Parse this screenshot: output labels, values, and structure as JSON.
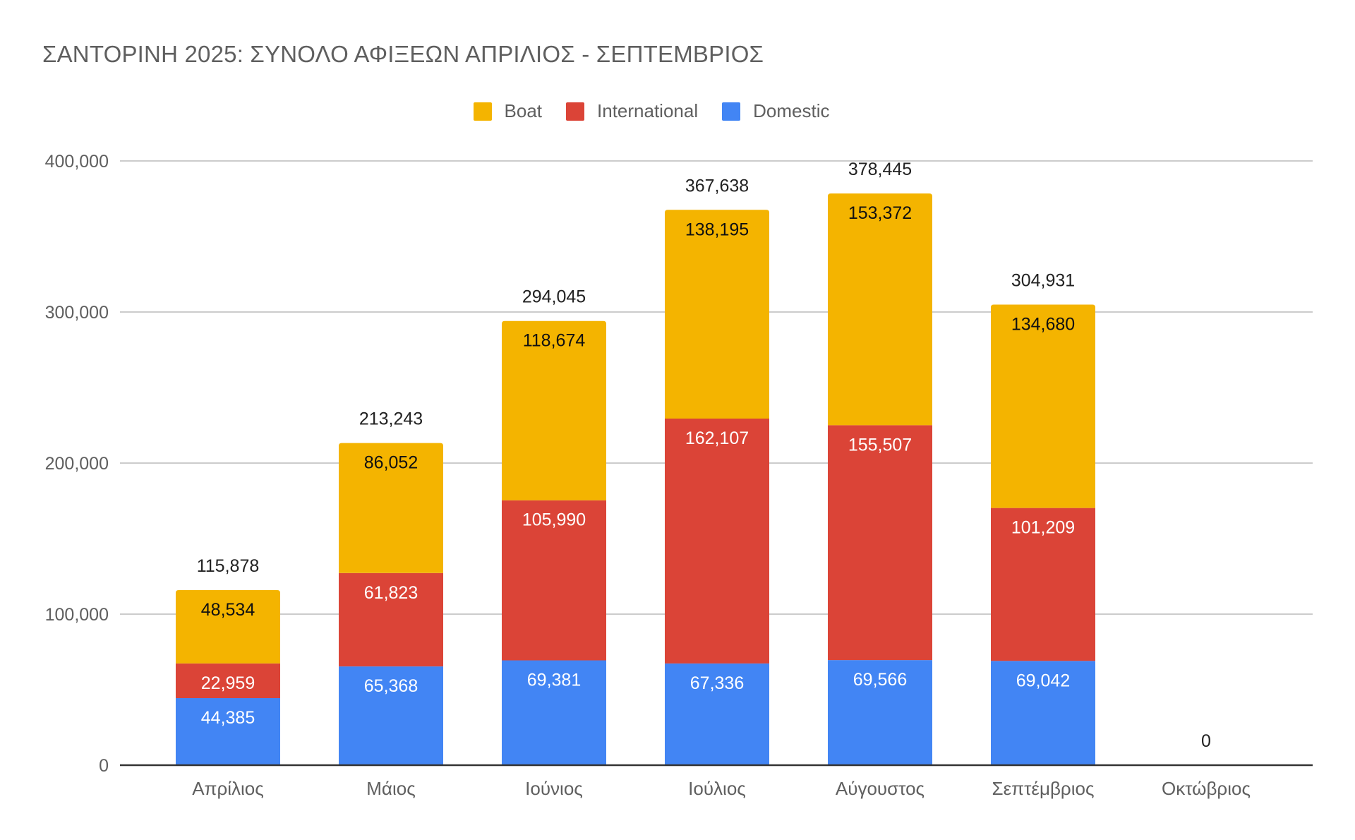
{
  "chart_data": {
    "type": "bar",
    "stacked": true,
    "title": "ΣΑΝΤΟΡΙΝΗ 2025: ΣΥΝΟΛΟ ΑΦΙΞΕΩΝ ΑΠΡΙΛΙΟΣ - ΣΕΠΤΕΜΒΡΙΟΣ",
    "xlabel": "",
    "ylabel": "",
    "ylim": [
      0,
      400000
    ],
    "yticks": [
      0,
      100000,
      200000,
      300000,
      400000
    ],
    "ytick_labels": [
      "0",
      "100,000",
      "200,000",
      "300,000",
      "400,000"
    ],
    "grid": true,
    "legend_position": "top-center",
    "categories": [
      "Απρίλιος",
      "Μάιος",
      "Ιούνιος",
      "Ιούλιος",
      "Αύγουστος",
      "Σεπτέμβριος",
      "Οκτώβριος"
    ],
    "series": [
      {
        "name": "Domestic",
        "color": "#4285F4",
        "label_color": "#ffffff",
        "values": [
          44385,
          65368,
          69381,
          67336,
          69566,
          69042,
          0
        ],
        "labels": [
          "44,385",
          "65,368",
          "69,381",
          "67,336",
          "69,566",
          "69,042",
          ""
        ]
      },
      {
        "name": "International",
        "color": "#DB4437",
        "label_color": "#ffffff",
        "values": [
          22959,
          61823,
          105990,
          162107,
          155507,
          101209,
          0
        ],
        "labels": [
          "22,959",
          "61,823",
          "105,990",
          "162,107",
          "155,507",
          "101,209",
          ""
        ]
      },
      {
        "name": "Boat",
        "color": "#F4B400",
        "label_color": "#111111",
        "values": [
          48534,
          86052,
          118674,
          138195,
          153372,
          134680,
          0
        ],
        "labels": [
          "48,534",
          "86,052",
          "118,674",
          "138,195",
          "153,372",
          "134,680",
          ""
        ]
      }
    ],
    "totals": [
      115878,
      213243,
      294045,
      367638,
      378445,
      304931,
      0
    ],
    "total_labels": [
      "115,878",
      "213,243",
      "294,045",
      "367,638",
      "378,445",
      "304,931",
      "0"
    ],
    "legend_order": [
      "Boat",
      "International",
      "Domestic"
    ]
  }
}
